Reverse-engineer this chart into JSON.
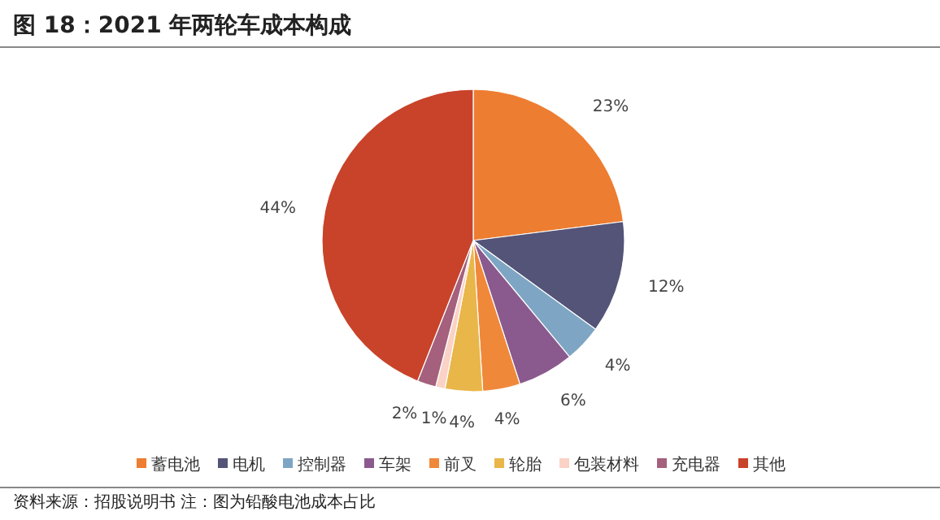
{
  "chart_data": {
    "type": "pie",
    "title": "图 18：2021 年两轮车成本构成",
    "categories": [
      "蓄电池",
      "电机",
      "控制器",
      "车架",
      "前叉",
      "轮胎",
      "包装材料",
      "充电器",
      "其他"
    ],
    "values": [
      23,
      12,
      4,
      6,
      4,
      4,
      1,
      2,
      44
    ],
    "colors": [
      "#ed7d31",
      "#545478",
      "#7ea6c4",
      "#8a5a8e",
      "#f0883a",
      "#e9b64a",
      "#fbd2c6",
      "#a4607c",
      "#c8432a"
    ],
    "value_labels": [
      "23%",
      "12%",
      "4%",
      "6%",
      "4%",
      "4%",
      "1%",
      "2%",
      "44%"
    ],
    "legend": "bottom",
    "annotations": [
      "资料来源：招股说明书 注：图为铅酸电池成本占比"
    ]
  }
}
